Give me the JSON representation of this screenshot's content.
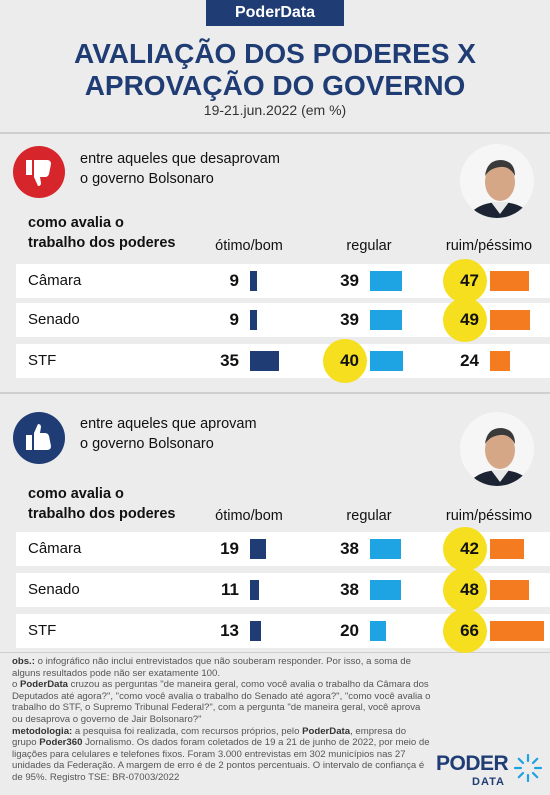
{
  "brand": "PoderData",
  "title_line1": "AVALIAÇÃO DOS PODERES  X",
  "title_line2": "APROVAÇÃO DO GOVERNO",
  "subtitle": "19-21.jun.2022 (em %)",
  "colors": {
    "dark": "#1f3d74",
    "regular": "#1ea3e3",
    "bad": "#f47b20",
    "highlight": "#f5df1f",
    "disapprove_icon": "#d7262b",
    "approve_icon": "#1f3d74"
  },
  "icons": {
    "disapprove": "thumbs-down-icon",
    "approve": "thumbs-up-icon"
  },
  "sections": [
    {
      "text1": "entre aqueles que desaprovam",
      "text2": "o governo Bolsonaro"
    },
    {
      "text1": "entre aqueles que aprovam",
      "text2": "o governo Bolsonaro"
    }
  ],
  "question_line1": "como avalia o",
  "question_line2": "trabalho dos poderes",
  "columns": [
    "ótimo/bom",
    "regular",
    "ruim/péssimo"
  ],
  "chart_data": [
    {
      "type": "bar",
      "title": "entre aqueles que desaprovam o governo Bolsonaro",
      "categories": [
        "Câmara",
        "Senado",
        "STF"
      ],
      "series": [
        {
          "name": "ótimo/bom",
          "values": [
            9,
            9,
            35
          ]
        },
        {
          "name": "regular",
          "values": [
            39,
            39,
            40
          ]
        },
        {
          "name": "ruim/péssimo",
          "values": [
            47,
            49,
            24
          ]
        }
      ],
      "highlighted": [
        [
          0,
          2
        ],
        [
          1,
          2
        ],
        [
          2,
          1
        ]
      ]
    },
    {
      "type": "bar",
      "title": "entre aqueles que aprovam o governo Bolsonaro",
      "categories": [
        "Câmara",
        "Senado",
        "STF"
      ],
      "series": [
        {
          "name": "ótimo/bom",
          "values": [
            19,
            11,
            13
          ]
        },
        {
          "name": "regular",
          "values": [
            38,
            38,
            20
          ]
        },
        {
          "name": "ruim/péssimo",
          "values": [
            42,
            48,
            66
          ]
        }
      ],
      "highlighted": [
        [
          0,
          2
        ],
        [
          1,
          2
        ],
        [
          2,
          2
        ]
      ]
    }
  ],
  "notes": {
    "obs_label": "obs.:",
    "obs_text": " o infográfico não inclui entrevistados que não souberam responder. Por isso, a soma de alguns resultados pode não ser exatamente 100.",
    "cross_brand": "PoderData",
    "cross_text": " cruzou as perguntas \"de maneira geral, como você avalia o trabalho da Câmara dos Deputados até agora?\", \"como você avalia o trabalho do Senado até agora?\", \"como você avalia o trabalho do STF, o Supremo Tribunal Federal?\", com a pergunta \"de maneira geral, você aprova ou desaprova o governo de Jair Bolsonaro?\"",
    "method_label": "metodologia:",
    "method_text1": " a pesquisa foi realizada, com recursos próprios, pelo ",
    "method_brand1": "PoderData",
    "method_text2": ", empresa do grupo ",
    "method_brand2": "Poder360",
    "method_text3": " Jornalismo. Os dados foram coletados de 19 a 21 de junho de 2022, por meio de ligações para celulares e telefones fixos. Foram 3.000 entrevistas em 302 municípios nas 27 unidades da Federação. A margem de erro é de 2 pontos percentuais. O intervalo de confiança é de 95%. Registro TSE: BR-07003/2022"
  },
  "logo_line1": "PODER",
  "logo_line2": "DATA"
}
